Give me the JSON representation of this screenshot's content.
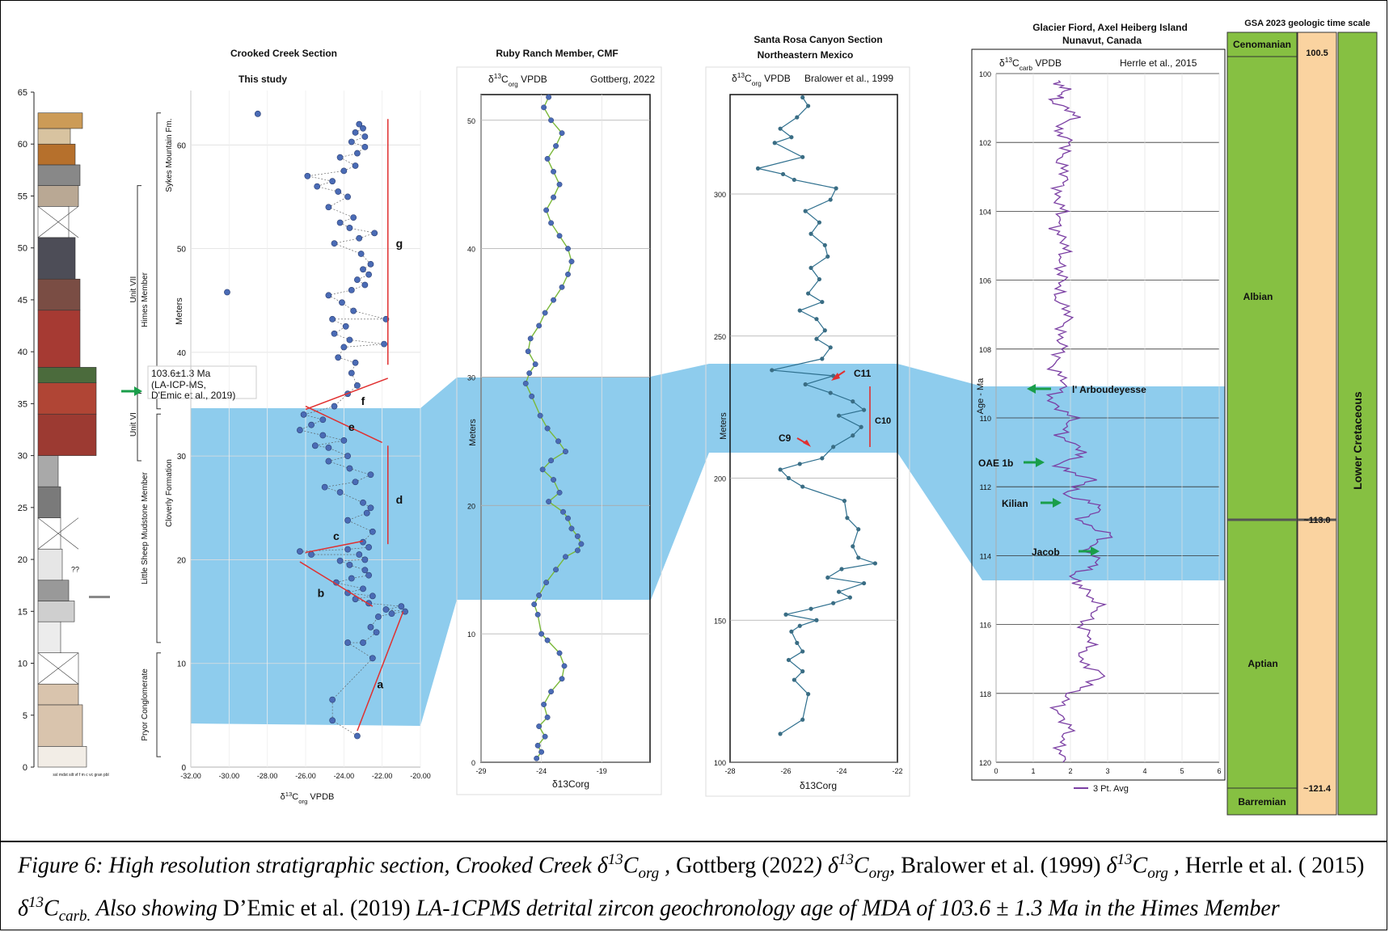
{
  "colors": {
    "highlight": "#88c9ec",
    "point": "#4a6bb5",
    "ruby_line": "#7ab83a",
    "santa_line": "#2e6f8e",
    "herrle_line": "#7b3fa3",
    "trend_red": "#e03030",
    "arrow_green": "#1a9e4a",
    "stage_green": "#86c042",
    "epoch_orange": "#fad3a0"
  },
  "panel1": {
    "title": "Crooked Creek Section",
    "subtitle": "This study",
    "ylabel": "Meters",
    "xlabel_prefix": "δ",
    "xlabel_sup": "13",
    "xlabel_c": "C",
    "xlabel_sub": "org",
    "xlabel_suffix": " VPDB",
    "formation_labels": [
      "Sykes Mountain Fm.",
      "Cloverly Formation"
    ],
    "column_labels": [
      "Unit VII",
      "Himes Member",
      "Unit VI",
      "Little Sheep Mudstone Member",
      "Pryor Conglomerate"
    ],
    "zircon_label": [
      "103.6±1.3 Ma",
      "(LA-ICP-MS,",
      "D'Emic et al., 2019)"
    ],
    "trend_letters": [
      "a",
      "b",
      "c",
      "d",
      "e",
      "f",
      "g"
    ],
    "litho_ticks": [
      0,
      5,
      10,
      15,
      20,
      25,
      30,
      35,
      40,
      45,
      50,
      55,
      60,
      65
    ],
    "question_marks": "??",
    "legend_strip": "ssl mdst silt vf f m c vc gran pbl"
  },
  "panel2": {
    "title": "Ruby Ranch Member, CMF",
    "label_delta": "δ",
    "label_sup": "13",
    "label_c": "C",
    "label_sub": "org",
    "label_tail": " VPDB",
    "citation": "Gottberg, 2022",
    "ylabel": "Meters",
    "xlabel": "δ13Corg"
  },
  "panel3": {
    "title": "Santa Rosa Canyon Section",
    "subtitle": "Northeastern Mexico",
    "label_delta": "δ",
    "label_sup": "13",
    "label_c": "C",
    "label_sub": "org",
    "label_tail": " VPDB",
    "citation": "Bralower et al., 1999",
    "ylabel": "Meters",
    "xlabel": "δ13Corg",
    "markers": [
      "C11",
      "C10",
      "C9"
    ]
  },
  "panel4": {
    "title": "Glacier Fiord, Axel Heiberg Island",
    "subtitle": "Nunavut, Canada",
    "label_delta": "δ",
    "label_sup": "13",
    "label_c": "C",
    "label_sub": "carb",
    "label_tail": " VPDB",
    "citation": "Herrle et al., 2015",
    "ylabel": "Age - Ma",
    "legend": "3 Pt. Avg",
    "events": [
      "l' Arboudeyesse",
      "OAE 1b",
      "Kilian",
      "Jacob"
    ]
  },
  "timescale": {
    "title": "GSA 2023 geologic time scale",
    "stages": [
      "Cenomanian",
      "Albian",
      "Aptian",
      "Barremian"
    ],
    "ages": [
      "100.5",
      "~113.0",
      "~121.4"
    ],
    "epoch": "Lower Cretaceous"
  },
  "caption": {
    "p1": "Figure 6: High resolution stratigraphic section, Crooked Creek δ",
    "sup": "13",
    "c": "C",
    "org": "org",
    "p2": " , ",
    "gottberg": "Gottberg (2022",
    "p3": ") δ",
    "comma1": ", ",
    "bralower": "Bralower et al. (1999)",
    "p4": " δ",
    "comma2": " ,",
    "herrle": "Herrle et al. ( 2015)",
    "p5": " δ",
    "carb": "carb.",
    "p6": " Also showing ",
    "demic": "D’Emic et al. (2019)",
    "p7": " LA-1CPMS detrital zircon geochronology age of MDA of 103.6 ± 1.3 Ma in the Himes Member"
  },
  "chart_data": [
    {
      "type": "scatter",
      "title": "Crooked Creek Section",
      "subtitle": "This study",
      "xlabel": "δ13Corg VPDB",
      "ylabel": "Meters",
      "xlim": [
        -32,
        -20
      ],
      "ylim": [
        0,
        64
      ],
      "x_ticks": [
        -32,
        -30,
        -28,
        -26,
        -24,
        -22,
        -20
      ],
      "x_tick_labels": [
        "-32.00",
        "-30.00",
        "-28.00",
        "-26.00",
        "-24.00",
        "-22.00",
        "-20.00"
      ],
      "y_ticks": [
        0,
        10,
        20,
        30,
        40,
        50,
        60
      ],
      "points": [
        [
          -23.3,
          3
        ],
        [
          -24.6,
          4.5
        ],
        [
          -24.6,
          6.5
        ],
        [
          -22.5,
          10.5
        ],
        [
          -23.8,
          12
        ],
        [
          -23.0,
          12
        ],
        [
          -22.3,
          13
        ],
        [
          -22.6,
          13.5
        ],
        [
          -22.2,
          14.5
        ],
        [
          -21.5,
          14.8
        ],
        [
          -20.8,
          15
        ],
        [
          -21.8,
          15.2
        ],
        [
          -21.0,
          15.5
        ],
        [
          -22.7,
          15.8
        ],
        [
          -23.4,
          16.2
        ],
        [
          -22.5,
          16.5
        ],
        [
          -23.8,
          16.8
        ],
        [
          -23.0,
          17.2
        ],
        [
          -24.4,
          17.8
        ],
        [
          -23.6,
          18.2
        ],
        [
          -22.7,
          18.5
        ],
        [
          -22.9,
          19
        ],
        [
          -23.7,
          19.5
        ],
        [
          -22.9,
          20
        ],
        [
          -23.2,
          20.5
        ],
        [
          -23.8,
          21
        ],
        [
          -22.7,
          21.2
        ],
        [
          -25.7,
          20.5
        ],
        [
          -26.3,
          20.8
        ],
        [
          -24.2,
          19.9
        ],
        [
          -23.0,
          21.7
        ],
        [
          -22.5,
          22.7
        ],
        [
          -23.8,
          23.8
        ],
        [
          -22.8,
          24.5
        ],
        [
          -22.6,
          25
        ],
        [
          -23.0,
          25.5
        ],
        [
          -24.2,
          26.5
        ],
        [
          -25.0,
          27
        ],
        [
          -23.4,
          27.5
        ],
        [
          -22.6,
          28.2
        ],
        [
          -23.7,
          28.8
        ],
        [
          -24.8,
          29.5
        ],
        [
          -23.8,
          30
        ],
        [
          -24.8,
          30.8
        ],
        [
          -25.5,
          31
        ],
        [
          -24.0,
          31.5
        ],
        [
          -25.1,
          32
        ],
        [
          -26.3,
          32.5
        ],
        [
          -25.7,
          33
        ],
        [
          -25.1,
          33.5
        ],
        [
          -26.1,
          34
        ],
        [
          -24.5,
          34.8
        ],
        [
          -23.8,
          36
        ],
        [
          -23.3,
          36.8
        ],
        [
          -23.6,
          38
        ],
        [
          -23.4,
          39
        ],
        [
          -24.3,
          39.5
        ],
        [
          -24.0,
          40.5
        ],
        [
          -23.7,
          41.2
        ],
        [
          -24.5,
          41.8
        ],
        [
          -23.9,
          42.5
        ],
        [
          -24.6,
          43.2
        ],
        [
          -23.5,
          44
        ],
        [
          -24.1,
          44.8
        ],
        [
          -24.8,
          45.5
        ],
        [
          -23.6,
          46
        ],
        [
          -22.9,
          46.5
        ],
        [
          -23.3,
          47
        ],
        [
          -22.7,
          47.5
        ],
        [
          -23.0,
          48
        ],
        [
          -22.6,
          48.5
        ],
        [
          -23.1,
          49.5
        ],
        [
          -24.5,
          50.5
        ],
        [
          -23.2,
          51
        ],
        [
          -22.4,
          51.5
        ],
        [
          -23.7,
          52
        ],
        [
          -24.2,
          52.5
        ],
        [
          -23.5,
          53
        ],
        [
          -24.8,
          54
        ],
        [
          -23.8,
          55
        ],
        [
          -24.3,
          55.5
        ],
        [
          -25.4,
          56
        ],
        [
          -24.6,
          56.5
        ],
        [
          -25.9,
          57
        ],
        [
          -24.0,
          57.5
        ],
        [
          -23.4,
          58
        ],
        [
          -24.2,
          58.8
        ],
        [
          -23.3,
          59.2
        ],
        [
          -22.9,
          59.8
        ],
        [
          -23.6,
          60.3
        ],
        [
          -22.9,
          60.8
        ],
        [
          -23.4,
          61.2
        ],
        [
          -23.0,
          61.6
        ],
        [
          -23.2,
          62
        ],
        [
          -28.5,
          63
        ],
        [
          -30.1,
          45.8
        ],
        [
          -21.8,
          43.2
        ],
        [
          -21.9,
          40.8
        ]
      ],
      "trend_letters": [
        "a",
        "b",
        "c",
        "d",
        "e",
        "f",
        "g"
      ]
    },
    {
      "type": "line",
      "title": "Ruby Ranch Member, CMF",
      "citation": "Gottberg, 2022",
      "xlabel": "δ13Corg",
      "ylabel": "Meters",
      "xlim": [
        -29,
        -15
      ],
      "ylim": [
        0,
        52
      ],
      "x_ticks": [
        -29,
        -24,
        -19
      ],
      "y_ticks": [
        0,
        10,
        20,
        30,
        40,
        50
      ],
      "points": [
        [
          -24.4,
          0.3
        ],
        [
          -24.0,
          0.8
        ],
        [
          -24.3,
          1.3
        ],
        [
          -23.7,
          2
        ],
        [
          -24.2,
          2.8
        ],
        [
          -23.5,
          3.5
        ],
        [
          -23.8,
          4.5
        ],
        [
          -23.2,
          5.5
        ],
        [
          -22.3,
          6.5
        ],
        [
          -22.1,
          7.5
        ],
        [
          -22.5,
          8.5
        ],
        [
          -23.5,
          9.5
        ],
        [
          -24.0,
          10
        ],
        [
          -24.3,
          11.5
        ],
        [
          -24.6,
          12.3
        ],
        [
          -24.2,
          13
        ],
        [
          -23.6,
          14
        ],
        [
          -22.8,
          15
        ],
        [
          -22.0,
          16
        ],
        [
          -21.0,
          16.5
        ],
        [
          -20.7,
          17
        ],
        [
          -21.0,
          17.6
        ],
        [
          -21.5,
          18.2
        ],
        [
          -21.8,
          19
        ],
        [
          -22.2,
          19.5
        ],
        [
          -23.4,
          20.3
        ],
        [
          -22.5,
          21
        ],
        [
          -23.0,
          22
        ],
        [
          -23.9,
          22.8
        ],
        [
          -23.2,
          23.5
        ],
        [
          -22.0,
          24.2
        ],
        [
          -22.6,
          25
        ],
        [
          -23.5,
          26
        ],
        [
          -24.1,
          27
        ],
        [
          -24.8,
          28.5
        ],
        [
          -25.3,
          29.5
        ],
        [
          -25.0,
          30.3
        ],
        [
          -24.5,
          31
        ],
        [
          -25.1,
          32
        ],
        [
          -24.9,
          33
        ],
        [
          -24.2,
          34
        ],
        [
          -23.7,
          35
        ],
        [
          -23.0,
          36
        ],
        [
          -22.3,
          37
        ],
        [
          -21.8,
          38
        ],
        [
          -21.5,
          39
        ],
        [
          -21.8,
          40
        ],
        [
          -22.5,
          41
        ],
        [
          -23.2,
          42
        ],
        [
          -23.6,
          43
        ],
        [
          -23.0,
          44
        ],
        [
          -22.5,
          45
        ],
        [
          -23.0,
          46
        ],
        [
          -23.5,
          47
        ],
        [
          -22.8,
          48
        ],
        [
          -22.3,
          49
        ],
        [
          -23.2,
          50
        ],
        [
          -23.8,
          51
        ],
        [
          -23.4,
          51.8
        ]
      ]
    },
    {
      "type": "line",
      "title": "Santa Rosa Canyon Section",
      "subtitle": "Northeastern Mexico",
      "citation": "Bralower et al., 1999",
      "xlabel": "δ13Corg",
      "ylabel": "Meters",
      "xlim": [
        -28,
        -22
      ],
      "ylim": [
        100,
        335
      ],
      "x_ticks": [
        -28,
        -26,
        -24,
        -22
      ],
      "y_ticks": [
        100,
        150,
        200,
        250,
        300
      ],
      "points": [
        [
          -26.2,
          110
        ],
        [
          -25.4,
          115
        ],
        [
          -25.2,
          124
        ],
        [
          -25.7,
          129
        ],
        [
          -25.4,
          132
        ],
        [
          -25.9,
          136
        ],
        [
          -25.4,
          139
        ],
        [
          -25.6,
          142
        ],
        [
          -25.8,
          146
        ],
        [
          -25.5,
          148
        ],
        [
          -24.9,
          150
        ],
        [
          -26.0,
          152
        ],
        [
          -25.1,
          154
        ],
        [
          -24.3,
          156
        ],
        [
          -23.7,
          158
        ],
        [
          -24.1,
          160
        ],
        [
          -23.2,
          163
        ],
        [
          -24.5,
          165
        ],
        [
          -24.0,
          168
        ],
        [
          -22.8,
          170
        ],
        [
          -23.4,
          172
        ],
        [
          -23.6,
          176
        ],
        [
          -23.4,
          182
        ],
        [
          -23.8,
          186
        ],
        [
          -23.9,
          192
        ],
        [
          -25.4,
          197
        ],
        [
          -25.9,
          200
        ],
        [
          -26.2,
          203
        ],
        [
          -25.5,
          205
        ],
        [
          -24.7,
          207
        ],
        [
          -24.3,
          211
        ],
        [
          -23.6,
          215
        ],
        [
          -23.3,
          218
        ],
        [
          -24.1,
          222
        ],
        [
          -23.2,
          224
        ],
        [
          -23.6,
          227
        ],
        [
          -24.4,
          230
        ],
        [
          -25.3,
          233
        ],
        [
          -24.3,
          236
        ],
        [
          -26.5,
          238
        ],
        [
          -24.7,
          242
        ],
        [
          -24.4,
          246
        ],
        [
          -24.9,
          249
        ],
        [
          -24.6,
          252
        ],
        [
          -24.9,
          256
        ],
        [
          -25.5,
          259
        ],
        [
          -24.7,
          262
        ],
        [
          -25.2,
          265
        ],
        [
          -24.8,
          270
        ],
        [
          -25.1,
          274
        ],
        [
          -24.5,
          278
        ],
        [
          -24.6,
          282
        ],
        [
          -25.1,
          286
        ],
        [
          -24.8,
          290
        ],
        [
          -25.3,
          294
        ],
        [
          -24.4,
          298
        ],
        [
          -24.2,
          302
        ],
        [
          -25.7,
          305
        ],
        [
          -26.1,
          307
        ],
        [
          -27.0,
          309
        ],
        [
          -25.4,
          313
        ],
        [
          -26.4,
          318
        ],
        [
          -25.8,
          320
        ],
        [
          -26.2,
          323
        ],
        [
          -25.6,
          327
        ],
        [
          -25.2,
          331
        ],
        [
          -25.4,
          334
        ]
      ],
      "markers": [
        "C11",
        "C10",
        "C9"
      ]
    },
    {
      "type": "line",
      "title": "Glacier Fiord, Axel Heiberg Island",
      "subtitle": "Nunavut, Canada",
      "citation": "Herrle et al., 2015",
      "xlabel": "",
      "ylabel": "Age - Ma",
      "series": [
        {
          "name": "3 Pt. Avg"
        }
      ],
      "xlim": [
        0,
        6
      ],
      "ylim": [
        100,
        120
      ],
      "x_ticks": [
        0,
        1,
        2,
        3,
        4,
        5,
        6
      ],
      "y_ticks": [
        100,
        102,
        104,
        106,
        108,
        110,
        112,
        114,
        116,
        118,
        120
      ],
      "points": [
        [
          1.6,
          100.2
        ],
        [
          1.9,
          100.5
        ],
        [
          1.5,
          100.8
        ],
        [
          2.2,
          101.2
        ],
        [
          1.6,
          101.6
        ],
        [
          2.0,
          102.0
        ],
        [
          1.7,
          102.5
        ],
        [
          1.9,
          103.0
        ],
        [
          1.6,
          103.5
        ],
        [
          1.8,
          104.0
        ],
        [
          1.6,
          104.5
        ],
        [
          1.9,
          105.0
        ],
        [
          1.7,
          105.5
        ],
        [
          1.8,
          106.0
        ],
        [
          1.6,
          106.5
        ],
        [
          2.0,
          107.0
        ],
        [
          1.7,
          107.5
        ],
        [
          1.8,
          108.0
        ],
        [
          1.5,
          108.5
        ],
        [
          1.9,
          109.0
        ],
        [
          1.4,
          109.5
        ],
        [
          2.1,
          110.0
        ],
        [
          1.7,
          110.5
        ],
        [
          2.4,
          111.0
        ],
        [
          1.6,
          111.4
        ],
        [
          2.6,
          111.8
        ],
        [
          1.8,
          112.2
        ],
        [
          2.9,
          112.6
        ],
        [
          2.2,
          113.0
        ],
        [
          3.1,
          113.4
        ],
        [
          2.4,
          113.8
        ],
        [
          2.8,
          114.2
        ],
        [
          2.0,
          114.6
        ],
        [
          2.4,
          115.0
        ],
        [
          2.8,
          115.5
        ],
        [
          2.3,
          116.0
        ],
        [
          2.6,
          116.5
        ],
        [
          2.2,
          117.0
        ],
        [
          2.9,
          117.5
        ],
        [
          2.0,
          118.0
        ],
        [
          1.6,
          118.5
        ],
        [
          2.0,
          119.0
        ],
        [
          1.7,
          119.5
        ],
        [
          1.8,
          120.0
        ]
      ],
      "events": [
        "l' Arboudeyesse",
        "OAE 1b",
        "Kilian",
        "Jacob"
      ]
    }
  ]
}
